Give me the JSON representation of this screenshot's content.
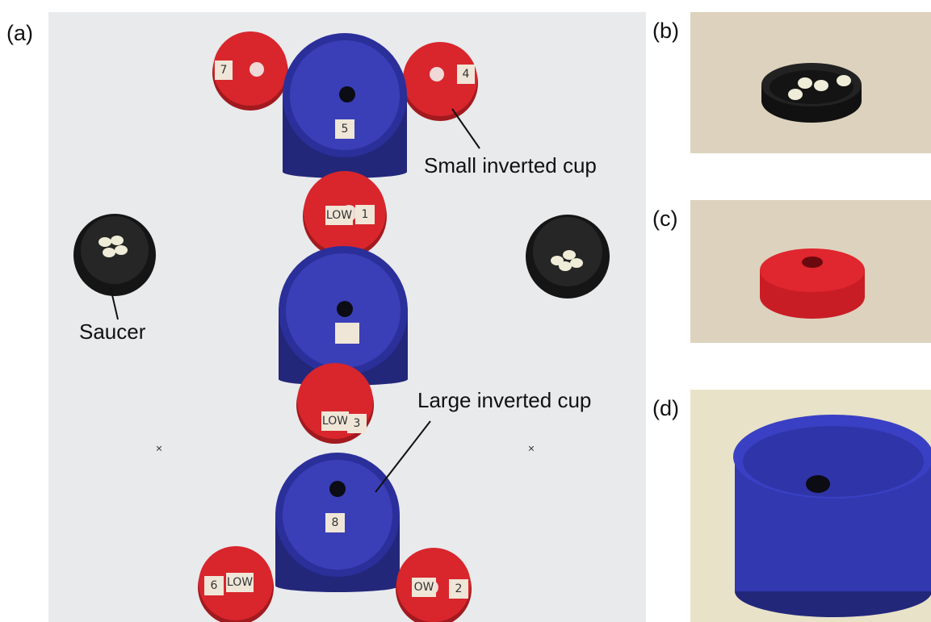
{
  "panels": [
    {
      "label": "(a)",
      "annotations": [
        "Small inverted cup",
        "Saucer",
        "Large inverted cup"
      ],
      "tags": [
        "7",
        "4",
        "5",
        "LOW",
        "1",
        "LOW",
        "3",
        "8",
        "6",
        "LOW",
        "OW",
        "2"
      ]
    },
    {
      "label": "(b)"
    },
    {
      "label": "(c)"
    },
    {
      "label": "(d)"
    }
  ]
}
